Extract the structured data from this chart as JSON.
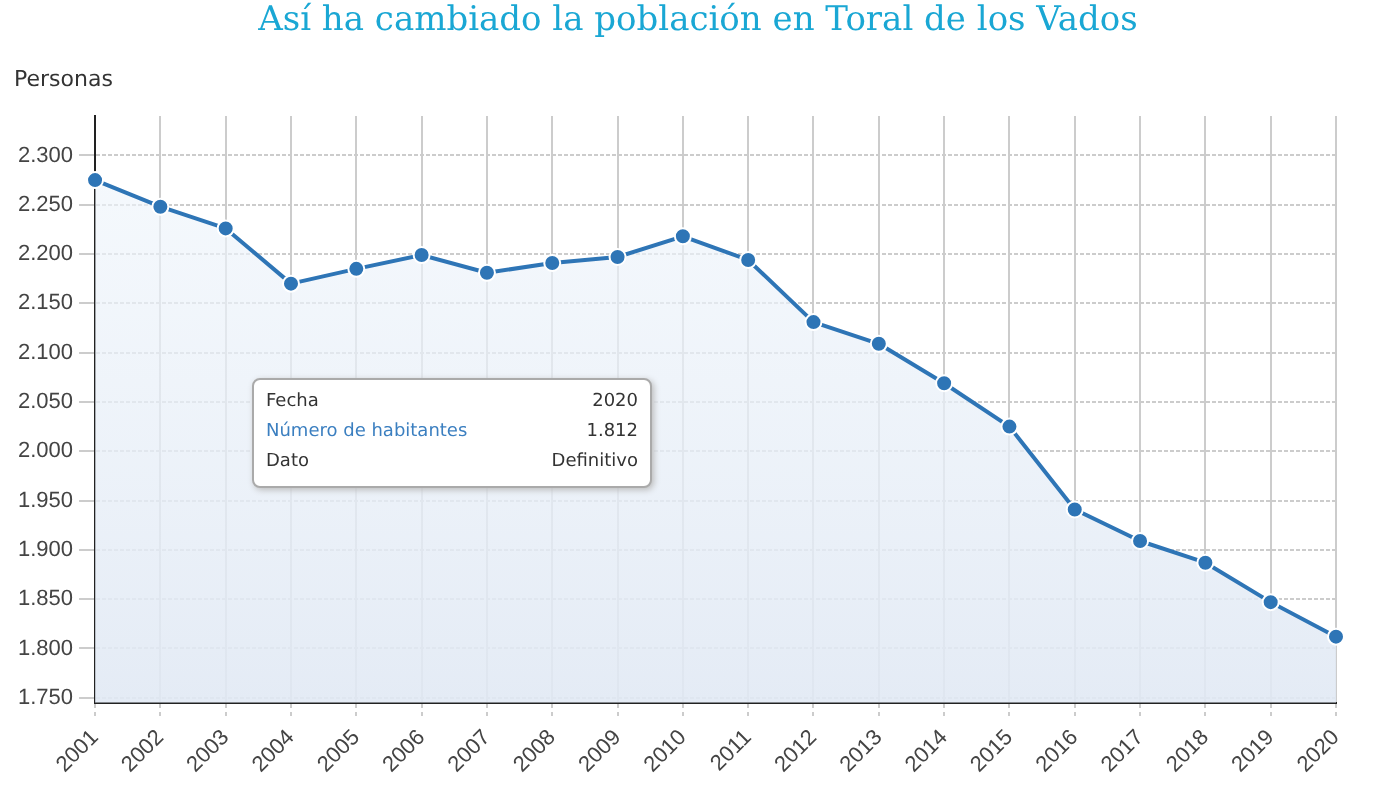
{
  "chart_data": {
    "type": "area",
    "title": "Así ha cambiado la población en Toral de los Vados",
    "ylabel": "Personas",
    "categories": [
      "2001",
      "2002",
      "2003",
      "2004",
      "2005",
      "2006",
      "2007",
      "2008",
      "2009",
      "2010",
      "2011",
      "2012",
      "2013",
      "2014",
      "2015",
      "2016",
      "2017",
      "2018",
      "2019",
      "2020"
    ],
    "series": [
      {
        "color": "#2e75b6",
        "values": [
          2275,
          2248,
          2226,
          2170,
          2185,
          2199,
          2181,
          2191,
          2197,
          2218,
          2194,
          2131,
          2109,
          2069,
          2025,
          1941,
          1909,
          1887,
          1847,
          1812
        ]
      }
    ],
    "ylim": [
      1745,
      2340
    ],
    "yticks": [
      {
        "value": 1750,
        "label": "1.750"
      },
      {
        "value": 1800,
        "label": "1.800"
      },
      {
        "value": 1850,
        "label": "1.850"
      },
      {
        "value": 1900,
        "label": "1.900"
      },
      {
        "value": 1950,
        "label": "1.950"
      },
      {
        "value": 2000,
        "label": "2.000"
      },
      {
        "value": 2050,
        "label": "2.050"
      },
      {
        "value": 2100,
        "label": "2.100"
      },
      {
        "value": 2150,
        "label": "2.150"
      },
      {
        "value": 2200,
        "label": "2.200"
      },
      {
        "value": 2250,
        "label": "2.250"
      },
      {
        "value": 2300,
        "label": "2.300"
      }
    ],
    "annotations": [
      "Fecha",
      "2020",
      "Número de habitantes",
      "1.812",
      "Dato",
      "Definitivo"
    ],
    "grid": true,
    "legend": false,
    "marker": "circle",
    "line_style": "solid"
  }
}
